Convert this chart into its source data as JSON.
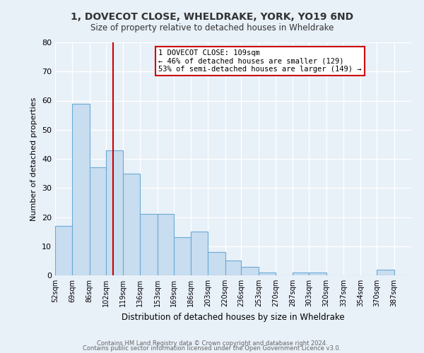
{
  "title": "1, DOVECOT CLOSE, WHELDRAKE, YORK, YO19 6ND",
  "subtitle": "Size of property relative to detached houses in Wheldrake",
  "xlabel": "Distribution of detached houses by size in Wheldrake",
  "ylabel": "Number of detached properties",
  "bar_color": "#c8ddf0",
  "bar_edge_color": "#6aaad4",
  "bg_color": "#e8f0f8",
  "fig_bg_color": "#e8f0f8",
  "grid_color": "#ffffff",
  "categories": [
    "52sqm",
    "69sqm",
    "86sqm",
    "102sqm",
    "119sqm",
    "136sqm",
    "153sqm",
    "169sqm",
    "186sqm",
    "203sqm",
    "220sqm",
    "236sqm",
    "253sqm",
    "270sqm",
    "287sqm",
    "303sqm",
    "320sqm",
    "337sqm",
    "354sqm",
    "370sqm",
    "387sqm"
  ],
  "values": [
    17,
    59,
    37,
    43,
    35,
    21,
    21,
    13,
    15,
    8,
    5,
    3,
    1,
    0,
    1,
    1,
    0,
    0,
    0,
    2,
    0
  ],
  "bin_edges": [
    52,
    69,
    86,
    102,
    119,
    136,
    153,
    169,
    186,
    203,
    220,
    236,
    253,
    270,
    287,
    303,
    320,
    337,
    354,
    370,
    387,
    404
  ],
  "vline_x": 109,
  "vline_color": "#cc0000",
  "annotation_text": "1 DOVECOT CLOSE: 109sqm\n← 46% of detached houses are smaller (129)\n53% of semi-detached houses are larger (149) →",
  "annotation_box_color": "#ffffff",
  "annotation_box_edge": "#cc0000",
  "ylim": [
    0,
    80
  ],
  "yticks": [
    0,
    10,
    20,
    30,
    40,
    50,
    60,
    70,
    80
  ],
  "footer1": "Contains HM Land Registry data © Crown copyright and database right 2024.",
  "footer2": "Contains public sector information licensed under the Open Government Licence v3.0."
}
